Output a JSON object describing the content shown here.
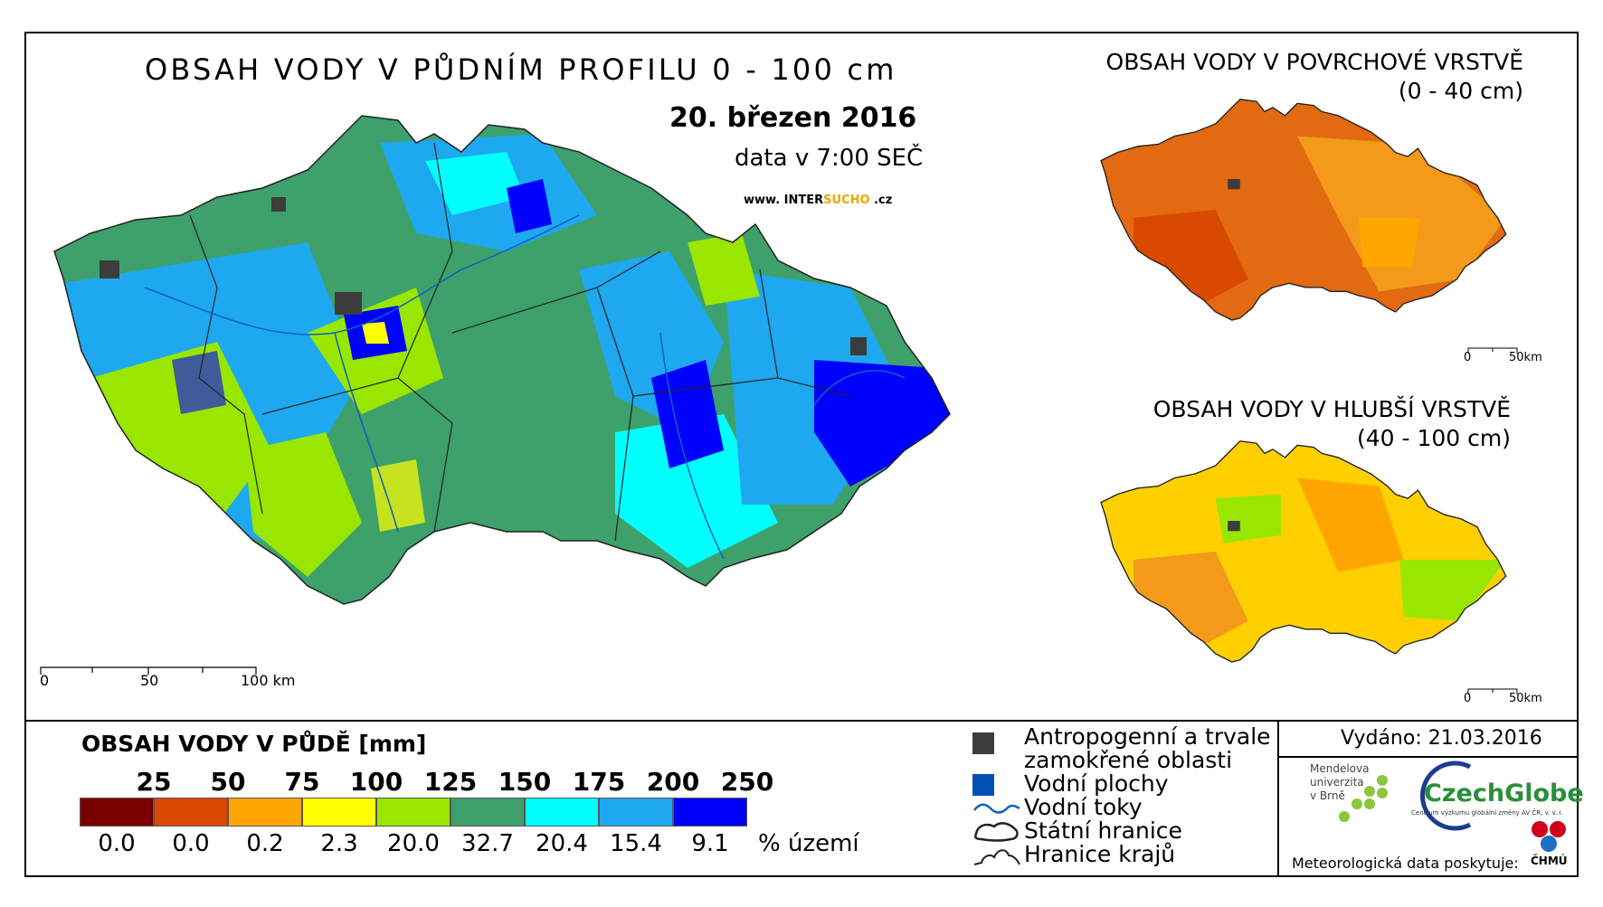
{
  "header": {
    "title": "OBSAH VODY V PŮDNÍM PROFILU 0 - 100 cm",
    "date": "20. březen 2016",
    "time": "data v 7:00 SEČ",
    "website_pre": "www. INTER",
    "website_accent": "SUCHO",
    "website_post": " .cz"
  },
  "main_map": {
    "scale_labels": [
      "0",
      "50",
      "100 km"
    ]
  },
  "inset_surface": {
    "title_line1": "OBSAH VODY V POVRCHOVÉ VRSTVĚ",
    "title_line2": "(0 - 40 cm)",
    "scale_labels": [
      "0",
      "50km"
    ]
  },
  "inset_deep": {
    "title_line1": "OBSAH VODY V HLUBŠÍ VRSTVĚ",
    "title_line2": "(40 - 100 cm)",
    "scale_labels": [
      "0",
      "50km"
    ]
  },
  "legend": {
    "title": "OBSAH VODY V PŮDĚ [mm]",
    "thresholds": [
      "25",
      "50",
      "75",
      "100",
      "125",
      "150",
      "175",
      "200",
      "250"
    ],
    "classes": [
      {
        "color": "#7a0000",
        "percent": "0.0"
      },
      {
        "color": "#d94a00",
        "percent": "0.0"
      },
      {
        "color": "#ffa500",
        "percent": "0.2"
      },
      {
        "color": "#ffff00",
        "percent": "2.3"
      },
      {
        "color": "#99e600",
        "percent": "20.0"
      },
      {
        "color": "#3ea06a",
        "percent": "32.7"
      },
      {
        "color": "#00ffff",
        "percent": "20.4"
      },
      {
        "color": "#1ea8f0",
        "percent": "15.4"
      },
      {
        "color": "#0000ff",
        "percent": "9.1"
      }
    ],
    "percent_unit": "% území"
  },
  "symbols": {
    "anthropogenic_line1": "Antropogenní a trvale",
    "anthropogenic_line2": "zamokřené oblasti",
    "water_bodies": "Vodní plochy",
    "rivers": "Vodní toky",
    "state_border": "Státní hranice",
    "region_border": "Hranice krajů",
    "anthropogenic_color": "#3c3c3c",
    "water_color": "#0050b4"
  },
  "footer": {
    "issued": "Vydáno: 21.03.2016",
    "mendel_line1": "Mendelova",
    "mendel_line2": "univerzita",
    "mendel_line3": "v Brně",
    "czechglobe": "CzechGlobe",
    "czechglobe_sub": "Centrum výzkumu globální změny AV ČR, v. v. i.",
    "met_data": "Meteorologická data poskytuje:",
    "chmu": "ČHMÚ"
  }
}
